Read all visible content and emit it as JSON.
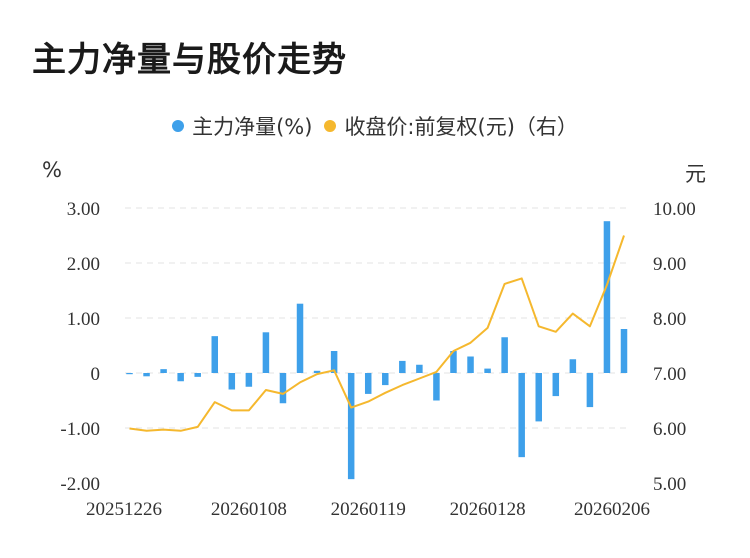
{
  "title": "主力净量与股价走势",
  "legend": {
    "bar_label": "主力净量(%)",
    "line_label": "收盘价:前复权(元)（右）"
  },
  "units": {
    "left": "%",
    "right": "元"
  },
  "colors": {
    "bar": "#3ea0ea",
    "line": "#f5b82e",
    "grid": "#e3e3e3"
  },
  "chart_data": {
    "type": "bar",
    "title": "主力净量与股价走势",
    "x_tick_labels": [
      "20251226",
      "20260108",
      "20260119",
      "20260128",
      "20260206"
    ],
    "left_axis": {
      "unit": "%",
      "ylim": [
        -2.0,
        3.0
      ],
      "ticks": [
        "3.00",
        "2.00",
        "1.00",
        "0",
        "-1.00",
        "-2.00"
      ],
      "tick_values": [
        3,
        2,
        1,
        0,
        -1,
        -2
      ]
    },
    "right_axis": {
      "unit": "元",
      "ylim": [
        5.0,
        10.0
      ],
      "ticks": [
        "10.00",
        "9.00",
        "8.00",
        "7.00",
        "6.00",
        "5.00"
      ],
      "tick_values": [
        10,
        9,
        8,
        7,
        6,
        5
      ]
    },
    "grid": true,
    "legend_position": "top",
    "label_index": [
      0,
      7,
      14,
      21,
      28
    ],
    "series": [
      {
        "name": "主力净量(%)",
        "type": "bar",
        "axis": "left",
        "values": [
          -0.02,
          -0.06,
          0.07,
          -0.15,
          -0.07,
          0.67,
          -0.3,
          -0.25,
          0.74,
          -0.55,
          1.26,
          0.04,
          0.4,
          -1.93,
          -0.38,
          -0.22,
          0.22,
          0.15,
          -0.5,
          0.4,
          0.3,
          0.08,
          0.65,
          -1.53,
          -0.88,
          -0.42,
          0.25,
          -0.62,
          2.76,
          0.8
        ]
      },
      {
        "name": "收盘价:前复权(元)（右）",
        "type": "line",
        "axis": "right",
        "values": [
          5.99,
          5.95,
          5.97,
          5.95,
          6.02,
          6.47,
          6.32,
          6.32,
          6.69,
          6.62,
          6.83,
          6.98,
          7.05,
          6.37,
          6.48,
          6.64,
          6.78,
          6.9,
          7.02,
          7.4,
          7.55,
          7.82,
          8.62,
          8.72,
          7.85,
          7.75,
          8.08,
          7.85,
          8.6,
          9.5
        ]
      }
    ]
  }
}
